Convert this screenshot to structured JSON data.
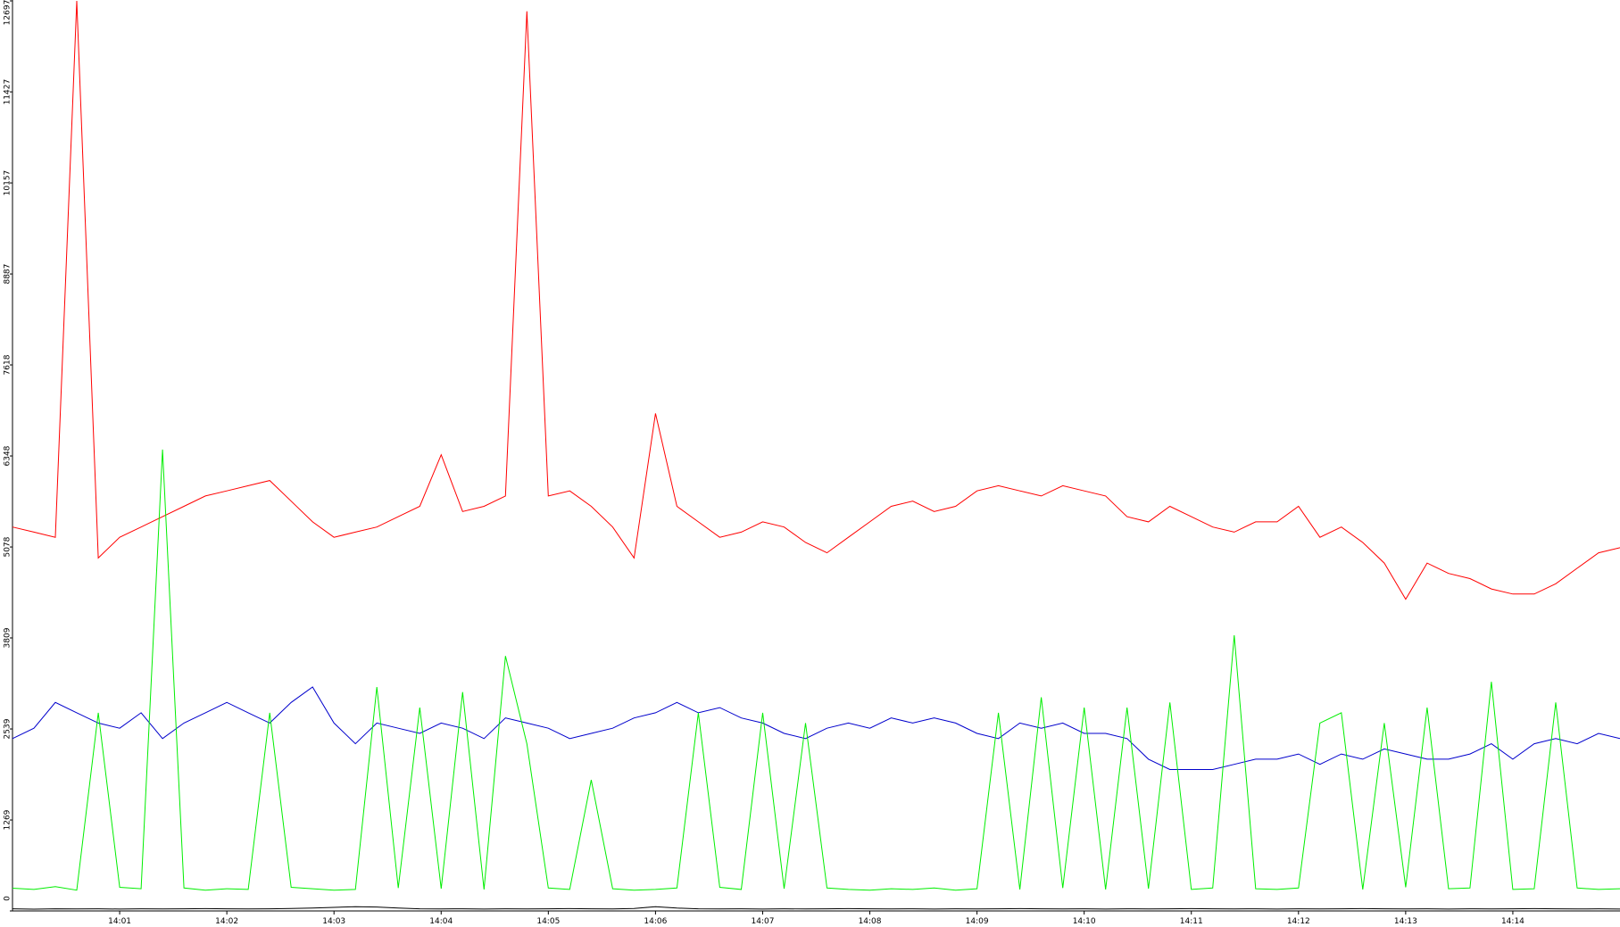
{
  "chart_data": {
    "type": "line",
    "x": [
      0,
      0.2,
      0.4,
      0.6,
      0.8,
      1,
      1.2,
      1.4,
      1.6,
      1.8,
      2,
      2.2,
      2.4,
      2.6,
      2.8,
      3,
      3.2,
      3.4,
      3.6,
      3.8,
      4,
      4.2,
      4.4,
      4.6,
      4.8,
      5,
      5.2,
      5.4,
      5.6,
      5.8,
      6,
      6.2,
      6.4,
      6.6,
      6.8,
      7,
      7.2,
      7.4,
      7.6,
      7.8,
      8,
      8.2,
      8.4,
      8.6,
      8.8,
      9,
      9.2,
      9.4,
      9.6,
      9.8,
      10,
      10.2,
      10.4,
      10.6,
      10.8,
      11,
      11.2,
      11.4,
      11.6,
      11.8,
      12,
      12.2,
      12.4,
      12.6,
      12.8,
      13,
      13.2,
      13.4,
      13.6,
      13.8,
      14,
      14.2,
      14.4,
      14.6,
      14.8,
      15
    ],
    "series": [
      {
        "color": "#ff0000",
        "values": [
          5357,
          5285,
          5213,
          12697,
          4925,
          5213,
          5357,
          5501,
          5645,
          5789,
          5861,
          5933,
          6005,
          5717,
          5429,
          5213,
          5285,
          5357,
          5501,
          5645,
          6365,
          5573,
          5645,
          5789,
          12553,
          5789,
          5861,
          5645,
          5357,
          4925,
          6941,
          5645,
          5429,
          5213,
          5285,
          5429,
          5357,
          5141,
          4997,
          5213,
          5429,
          5645,
          5717,
          5573,
          5645,
          5861,
          5933,
          5861,
          5789,
          5933,
          5861,
          5789,
          5501,
          5429,
          5645,
          5501,
          5357,
          5285,
          5429,
          5429,
          5645,
          5213,
          5357,
          5141,
          4853,
          4349,
          4853,
          4709,
          4637,
          4493,
          4421,
          4421,
          4565,
          4781,
          4997,
          5069
        ]
      },
      {
        "color": "#0000cc",
        "values": [
          2405,
          2549,
          2909,
          2765,
          2621,
          2549,
          2765,
          2405,
          2621,
          2765,
          2909,
          2765,
          2621,
          2909,
          3125,
          2621,
          2333,
          2621,
          2549,
          2477,
          2621,
          2549,
          2405,
          2693,
          2621,
          2549,
          2405,
          2477,
          2549,
          2693,
          2765,
          2909,
          2765,
          2837,
          2693,
          2621,
          2477,
          2405,
          2549,
          2621,
          2549,
          2693,
          2621,
          2693,
          2621,
          2477,
          2405,
          2621,
          2549,
          2621,
          2477,
          2477,
          2405,
          2117,
          1973,
          1973,
          1973,
          2045,
          2117,
          2117,
          2189,
          2045,
          2189,
          2117,
          2261,
          2189,
          2117,
          2117,
          2189,
          2333,
          2117,
          2333,
          2405,
          2333,
          2477,
          2405
        ]
      },
      {
        "color": "#00ee00",
        "values": [
          317,
          300,
          340,
          290,
          2765,
          330,
          310,
          6437,
          320,
          290,
          310,
          300,
          2765,
          330,
          310,
          290,
          300,
          3125,
          320,
          2837,
          310,
          3053,
          300,
          3557,
          2333,
          320,
          300,
          1829,
          310,
          290,
          300,
          320,
          2765,
          330,
          300,
          2765,
          310,
          2621,
          320,
          300,
          290,
          310,
          300,
          320,
          290,
          310,
          2765,
          300,
          2981,
          320,
          2837,
          300,
          2837,
          310,
          2909,
          300,
          320,
          3845,
          310,
          300,
          320,
          2621,
          2765,
          300,
          2621,
          330,
          2837,
          310,
          320,
          3197,
          300,
          310,
          2909,
          320,
          300,
          310
        ]
      },
      {
        "color": "#000000",
        "values": [
          30,
          25,
          30,
          28,
          30,
          26,
          30,
          28,
          30,
          32,
          30,
          28,
          30,
          35,
          40,
          50,
          60,
          55,
          40,
          30,
          28,
          30,
          26,
          30,
          28,
          30,
          32,
          30,
          28,
          35,
          60,
          40,
          30,
          28,
          30,
          26,
          30,
          28,
          30,
          32,
          30,
          28,
          30,
          26,
          30,
          28,
          30,
          32,
          30,
          28,
          30,
          26,
          30,
          28,
          30,
          32,
          30,
          28,
          30,
          26,
          30,
          28,
          30,
          32,
          30,
          28,
          30,
          26,
          30,
          28,
          30,
          32,
          30,
          28,
          30,
          26
        ]
      }
    ],
    "xlim": [
      0,
      15
    ],
    "ylim": [
      0,
      12697
    ],
    "xticks": [
      {
        "value": 1,
        "label": "14:01"
      },
      {
        "value": 2,
        "label": "14:02"
      },
      {
        "value": 3,
        "label": "14:03"
      },
      {
        "value": 4,
        "label": "14:04"
      },
      {
        "value": 5,
        "label": "14:05"
      },
      {
        "value": 6,
        "label": "14:06"
      },
      {
        "value": 7,
        "label": "14:07"
      },
      {
        "value": 8,
        "label": "14:08"
      },
      {
        "value": 9,
        "label": "14:09"
      },
      {
        "value": 10,
        "label": "14:10"
      },
      {
        "value": 11,
        "label": "14:11"
      },
      {
        "value": 12,
        "label": "14:12"
      },
      {
        "value": 13,
        "label": "14:13"
      },
      {
        "value": 14,
        "label": "14:14"
      }
    ],
    "yticks": [
      0,
      1269,
      2539,
      3809,
      5078,
      6348,
      7618,
      8887,
      10157,
      11427,
      12697
    ]
  }
}
